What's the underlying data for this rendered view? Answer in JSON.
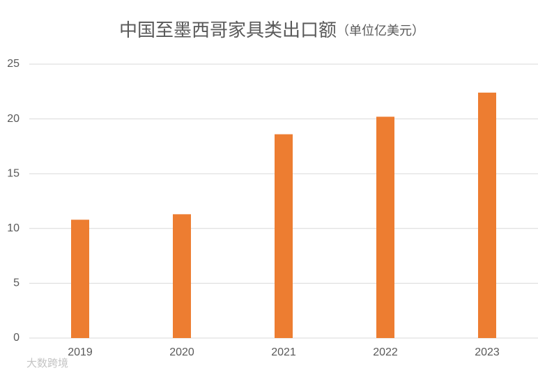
{
  "chart_data": {
    "type": "bar",
    "title": "中国至墨西哥家具类出口额",
    "subtitle": "（单位亿美元）",
    "categories": [
      "2019",
      "2020",
      "2021",
      "2022",
      "2023"
    ],
    "values": [
      10.8,
      11.3,
      18.6,
      20.2,
      22.4
    ],
    "color": "#ed7d31",
    "ylim": [
      0,
      25
    ],
    "yticks": [
      0,
      5,
      10,
      15,
      20,
      25
    ],
    "grid": true,
    "watermark": "大数跨境"
  }
}
